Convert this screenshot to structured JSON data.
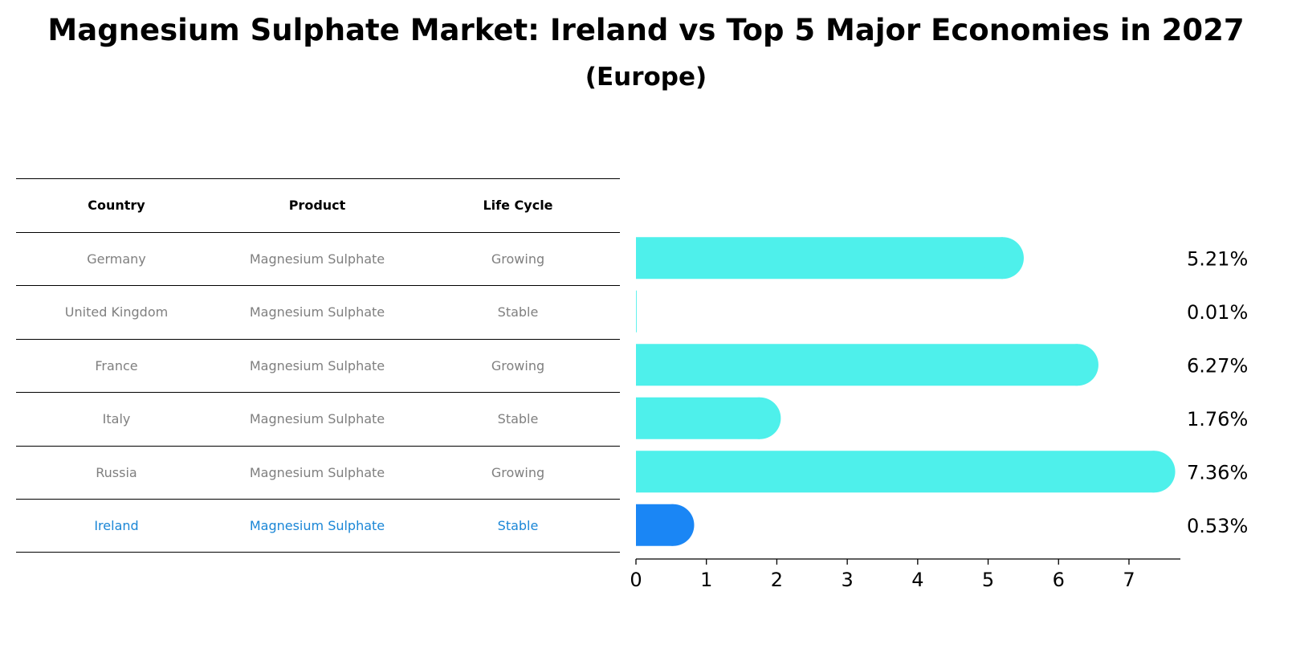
{
  "title": "Magnesium Sulphate Market: Ireland vs Top 5 Major Economies in 2027",
  "subtitle": "(Europe)",
  "table": {
    "headers": [
      "Country",
      "Product",
      "Life Cycle"
    ],
    "rows": [
      [
        "Germany",
        "Magnesium Sulphate",
        "Growing"
      ],
      [
        "United Kingdom",
        "Magnesium Sulphate",
        "Stable"
      ],
      [
        "France",
        "Magnesium Sulphate",
        "Growing"
      ],
      [
        "Italy",
        "Magnesium Sulphate",
        "Stable"
      ],
      [
        "Russia",
        "Magnesium Sulphate",
        "Growing"
      ],
      [
        "Ireland",
        "Magnesium Sulphate",
        "Stable"
      ]
    ]
  },
  "colors": {
    "bar": "#4ef0eb",
    "highlight": "#1a86f5",
    "highlight_text": "#1a86d6",
    "table_text": "#7f7f7f"
  },
  "chart_data": {
    "type": "bar",
    "orientation": "horizontal",
    "categories": [
      "Germany",
      "United Kingdom",
      "France",
      "Italy",
      "Russia",
      "Ireland"
    ],
    "values": [
      5.21,
      0.01,
      6.27,
      1.76,
      7.36,
      0.53
    ],
    "value_labels": [
      "5.21%",
      "0.01%",
      "6.27%",
      "1.76%",
      "7.36%",
      "0.53%"
    ],
    "highlight_category": "Ireland",
    "xlim": [
      0,
      7.73
    ],
    "xticks": [
      0,
      1,
      2,
      3,
      4,
      5,
      6,
      7
    ],
    "grid": false
  }
}
